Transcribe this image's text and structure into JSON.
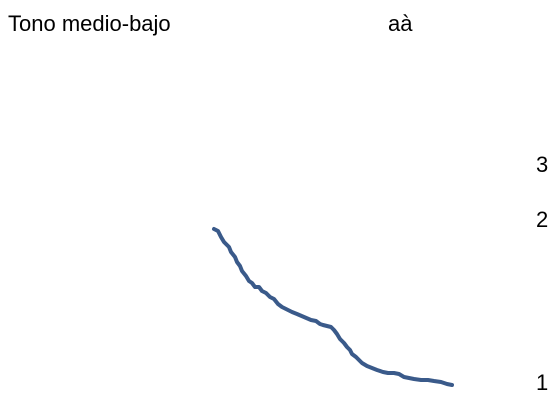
{
  "diagram": {
    "title": "Tono medio-bajo",
    "example": "aà",
    "scale": {
      "levels": [
        "3",
        "2",
        "1"
      ]
    },
    "contour": {
      "label": "medio-bajo",
      "color": "#3a5a8a"
    }
  }
}
